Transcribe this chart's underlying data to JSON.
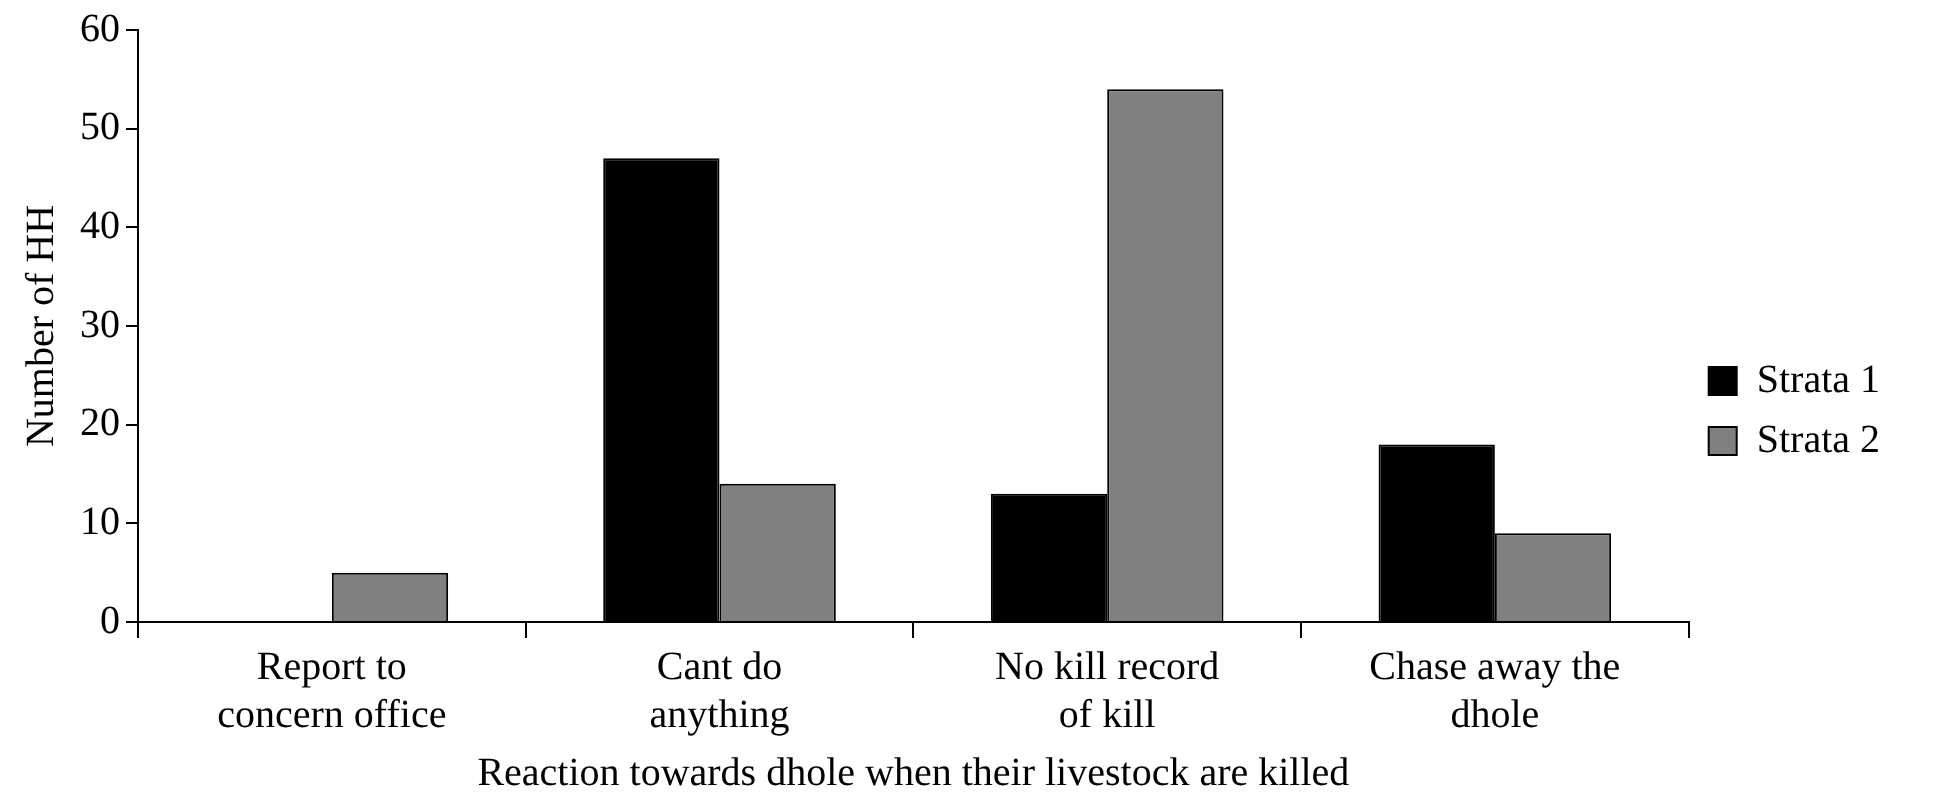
{
  "chart_data": {
    "type": "bar",
    "categories": [
      "Report to\nconcern office",
      "Cant do\nanything",
      "No kill record\nof kill",
      "Chase away the\ndhole"
    ],
    "series": [
      {
        "name": "Strata 1",
        "color": "#000000",
        "values": [
          0,
          47,
          13,
          18
        ]
      },
      {
        "name": "Strata 2",
        "color": "#808080",
        "values": [
          5,
          14,
          54,
          9
        ]
      }
    ],
    "xlabel": "Reaction towards dhole when their livestock are killed",
    "ylabel": "Number of HH",
    "ylim": [
      0,
      60
    ],
    "yticks": [
      0,
      10,
      20,
      30,
      40,
      50,
      60
    ],
    "grid": false,
    "legend": "right"
  }
}
